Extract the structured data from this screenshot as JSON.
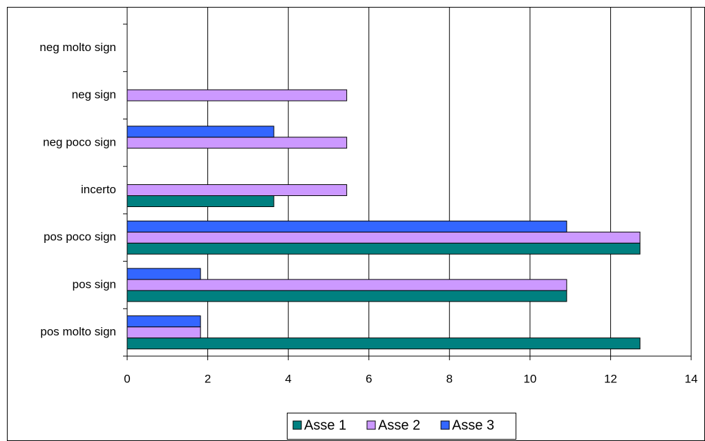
{
  "chart_data": {
    "type": "bar",
    "orientation": "horizontal",
    "categories": [
      "pos molto sign",
      "pos sign",
      "pos poco sign",
      "incerto",
      "neg poco sign",
      "neg sign",
      "neg molto sign"
    ],
    "series": [
      {
        "name": "Asse 1",
        "color": "#008080",
        "values": [
          12.73,
          10.91,
          12.73,
          3.64,
          0,
          0,
          0
        ]
      },
      {
        "name": "Asse 2",
        "color": "#cc99ff",
        "values": [
          1.82,
          10.91,
          12.73,
          5.45,
          5.45,
          5.45,
          0
        ]
      },
      {
        "name": "Asse 3",
        "color": "#3366ff",
        "values": [
          1.82,
          1.82,
          10.91,
          0,
          3.64,
          0,
          0
        ]
      }
    ],
    "xlim": [
      0,
      14
    ],
    "xticks": [
      0,
      2,
      4,
      6,
      8,
      10,
      12,
      14
    ],
    "grid": true,
    "legend": "bottom"
  }
}
